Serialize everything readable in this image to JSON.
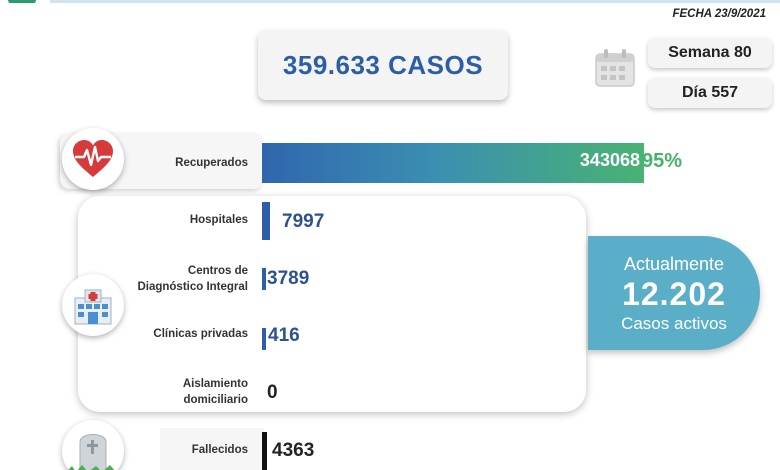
{
  "header": {
    "fecha": "FECHA 23/9/2021",
    "casos_total": "359.633 CASOS",
    "semana": "Semana 80",
    "dia": "Día 557"
  },
  "recuperados": {
    "label": "Recuperados",
    "value": "343068",
    "percent": "95%"
  },
  "hospitalizacion": {
    "items": [
      {
        "label": "Hospitales",
        "value": "7997"
      },
      {
        "label": "Centros de\nDiagnóstico Integral",
        "value": "3789"
      },
      {
        "label": "Clínicas privadas",
        "value": "416"
      },
      {
        "label": "Aislamiento\ndomiciliario",
        "value": "0"
      }
    ]
  },
  "activos": {
    "line1": "Actualmente",
    "number": "12.202",
    "line3": "Casos activos"
  },
  "fallecidos": {
    "label": "Fallecidos",
    "value": "4363"
  },
  "colors": {
    "primary_blue": "#2c5ea8",
    "recovered_green": "#47b36a",
    "active_teal": "#5aaec8"
  },
  "icons": [
    "heart-pulse-icon",
    "hospital-icon",
    "tombstone-icon",
    "calendar-icon"
  ],
  "chart_data": {
    "type": "bar",
    "orientation": "horizontal",
    "categories": [
      "Recuperados",
      "Hospitales",
      "Centros de Diagnóstico Integral",
      "Clínicas privadas",
      "Aislamiento domiciliario",
      "Fallecidos"
    ],
    "values": [
      343068,
      7997,
      3789,
      416,
      0,
      4363
    ],
    "total": 359633
  }
}
